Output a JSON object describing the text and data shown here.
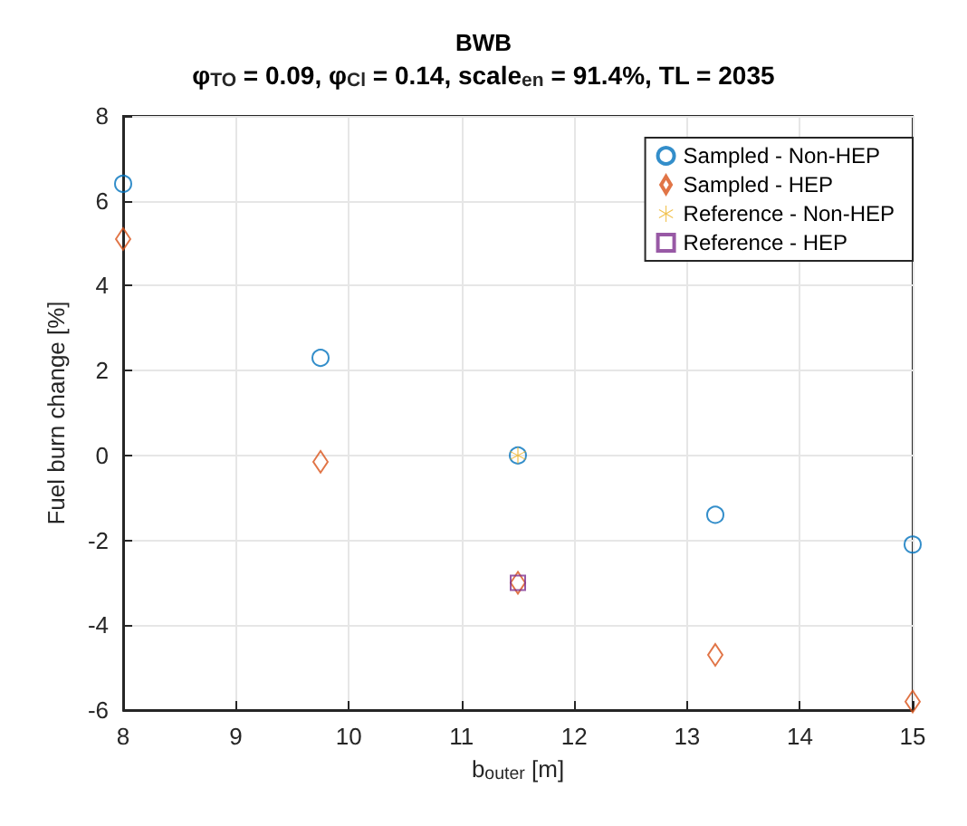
{
  "chart_data": {
    "type": "scatter",
    "title": "BWB",
    "subtitle": "φ$_{TO}$ = 0.09, φ$_{Cl}$ = 0.14, scale$_{en}$ = 91.4%, TL = 2035",
    "xlabel": "b$_{outer}$ [m]",
    "ylabel": "Fuel burn change [%]",
    "xlim": [
      8,
      15
    ],
    "xticks": [
      8,
      9,
      10,
      11,
      12,
      13,
      14,
      15
    ],
    "ylim": [
      -6,
      8
    ],
    "yticks": [
      -6,
      -4,
      -2,
      0,
      2,
      4,
      6,
      8
    ],
    "grid": true,
    "legend": "top right",
    "series": [
      {
        "name": "Sampled - Non-HEP",
        "color": "#0072bd",
        "marker": "circle",
        "x": [
          8,
          9.75,
          11.5,
          13.25,
          15
        ],
        "values": [
          6.4,
          2.3,
          0,
          -1.4,
          -2.1
        ]
      },
      {
        "name": "Sampled - HEP",
        "color": "#d95319",
        "marker": "diamond",
        "x": [
          8,
          9.75,
          11.5,
          13.25,
          15
        ],
        "values": [
          5.1,
          -0.15,
          -3.0,
          -4.7,
          -5.8
        ]
      },
      {
        "name": "Reference - Non-HEP",
        "color": "#edb120",
        "marker": "star",
        "x": [
          11.5
        ],
        "values": [
          0
        ]
      },
      {
        "name": "Reference - HEP",
        "color": "#7e2f8e",
        "marker": "square",
        "x": [
          11.5
        ],
        "values": [
          -3.0
        ]
      }
    ]
  }
}
